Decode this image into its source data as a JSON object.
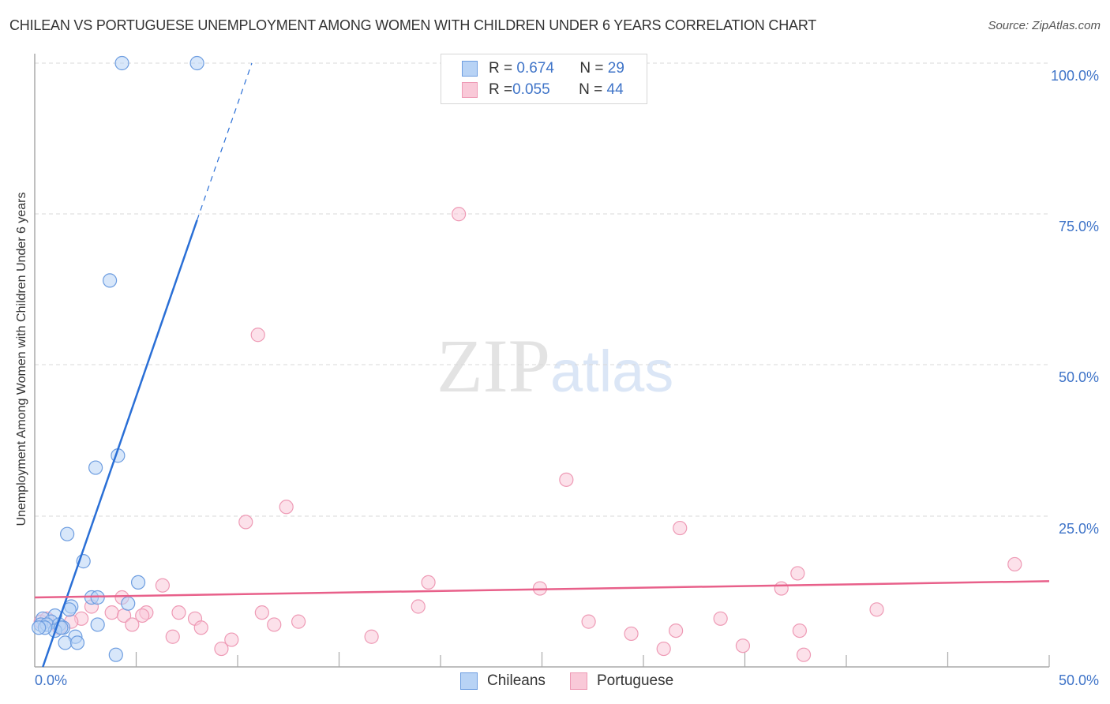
{
  "header": {
    "title": "CHILEAN VS PORTUGUESE UNEMPLOYMENT AMONG WOMEN WITH CHILDREN UNDER 6 YEARS CORRELATION CHART",
    "source": "Source: ZipAtlas.com"
  },
  "watermark": {
    "zip": "ZIP",
    "atlas": "atlas"
  },
  "axes": {
    "ylabel": "Unemployment Among Women with Children Under 6 years",
    "yticks": [
      "100.0%",
      "75.0%",
      "50.0%",
      "25.0%"
    ],
    "xticks": [
      "0.0%",
      "50.0%"
    ]
  },
  "legend_top": {
    "rows": [
      {
        "r_label": "R = ",
        "r_value": "0.674",
        "n_label": "N = ",
        "n_value": "29"
      },
      {
        "r_label": "R = ",
        "r_value": "0.055",
        "n_label": "N = ",
        "n_value": "44"
      }
    ]
  },
  "legend_bottom": {
    "items": [
      {
        "label": "Chileans"
      },
      {
        "label": "Portuguese"
      }
    ]
  },
  "colors": {
    "chileans_fill": "#b8d3f5",
    "chileans_stroke": "#6d9de0",
    "chileans_line": "#2a6fd6",
    "portuguese_fill": "#f9c9d8",
    "portuguese_stroke": "#ee9ab5",
    "portuguese_line": "#e8608a",
    "tick_label": "#3f74c8"
  },
  "chart_data": {
    "type": "scatter",
    "title": "CHILEAN VS PORTUGUESE UNEMPLOYMENT AMONG WOMEN WITH CHILDREN UNDER 6 YEARS CORRELATION CHART",
    "xlabel": "",
    "ylabel": "Unemployment Among Women with Children Under 6 years",
    "xlim": [
      0,
      50
    ],
    "ylim": [
      0,
      100
    ],
    "x_tick_labels": [
      "0.0%",
      "50.0%"
    ],
    "y_tick_labels": [
      "25.0%",
      "50.0%",
      "75.0%",
      "100.0%"
    ],
    "grid": "horizontal dashed at 25/50/75/100",
    "legend_position": "top-center (stats) and bottom-center (series)",
    "series": [
      {
        "name": "Chileans",
        "r": 0.674,
        "n": 29,
        "trend": {
          "x0": 0.4,
          "y0": 0,
          "x1": 8.0,
          "y1": 74,
          "dashed_to": {
            "x": 10.7,
            "y": 100
          }
        },
        "points": [
          [
            4.3,
            100
          ],
          [
            8.0,
            100
          ],
          [
            3.7,
            64
          ],
          [
            4.1,
            35
          ],
          [
            3.0,
            33
          ],
          [
            1.6,
            22
          ],
          [
            2.4,
            17.5
          ],
          [
            5.1,
            14
          ],
          [
            2.8,
            11.5
          ],
          [
            3.1,
            11.5
          ],
          [
            4.6,
            10.5
          ],
          [
            1.8,
            10
          ],
          [
            1.7,
            9.5
          ],
          [
            0.4,
            8
          ],
          [
            1.0,
            8.5
          ],
          [
            0.8,
            7.5
          ],
          [
            0.3,
            7
          ],
          [
            0.6,
            7
          ],
          [
            1.2,
            7
          ],
          [
            1.4,
            6.5
          ],
          [
            1.0,
            6
          ],
          [
            1.3,
            6.5
          ],
          [
            0.5,
            6.5
          ],
          [
            0.2,
            6.5
          ],
          [
            3.1,
            7
          ],
          [
            2.0,
            5
          ],
          [
            1.5,
            4
          ],
          [
            2.1,
            4
          ],
          [
            4.0,
            2
          ]
        ]
      },
      {
        "name": "Portuguese",
        "r": 0.055,
        "n": 44,
        "trend": {
          "x0": 0,
          "y0": 11.5,
          "x1": 50,
          "y1": 14.2
        },
        "points": [
          [
            20.9,
            75
          ],
          [
            11.0,
            55
          ],
          [
            26.2,
            31
          ],
          [
            12.4,
            26.5
          ],
          [
            10.4,
            24
          ],
          [
            31.8,
            23
          ],
          [
            48.3,
            17
          ],
          [
            37.6,
            15.5
          ],
          [
            19.4,
            14
          ],
          [
            6.3,
            13.5
          ],
          [
            24.9,
            13
          ],
          [
            36.8,
            13
          ],
          [
            4.3,
            11.5
          ],
          [
            2.8,
            10
          ],
          [
            18.9,
            10
          ],
          [
            41.5,
            9.5
          ],
          [
            5.5,
            9
          ],
          [
            7.1,
            9
          ],
          [
            11.2,
            9
          ],
          [
            3.8,
            9
          ],
          [
            4.4,
            8.5
          ],
          [
            5.3,
            8.5
          ],
          [
            7.9,
            8
          ],
          [
            2.3,
            8
          ],
          [
            1.8,
            7.5
          ],
          [
            0.3,
            7.5
          ],
          [
            27.3,
            7.5
          ],
          [
            13.0,
            7.5
          ],
          [
            33.8,
            8
          ],
          [
            4.8,
            7
          ],
          [
            11.8,
            7
          ],
          [
            8.2,
            6.5
          ],
          [
            31.6,
            6
          ],
          [
            37.7,
            6
          ],
          [
            29.4,
            5.5
          ],
          [
            16.6,
            5
          ],
          [
            6.8,
            5
          ],
          [
            9.7,
            4.5
          ],
          [
            34.9,
            3.5
          ],
          [
            9.2,
            3
          ],
          [
            31.0,
            3
          ],
          [
            37.9,
            2
          ],
          [
            0.6,
            8
          ],
          [
            1.2,
            6.5
          ]
        ]
      }
    ]
  }
}
